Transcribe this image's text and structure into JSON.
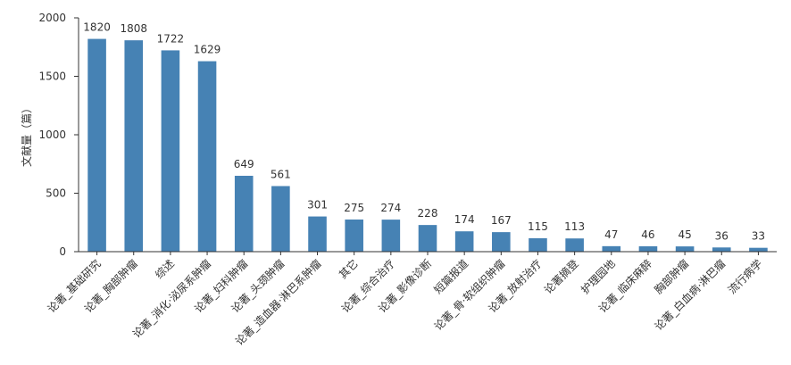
{
  "chart_data": {
    "type": "bar",
    "categories": [
      "论著_基础研究",
      "论著_胸部肿瘤",
      "综述",
      "论著_消化·泌尿系肿瘤",
      "论著_妇科肿瘤",
      "论著_头颈肿瘤",
      "论著_造血器·淋巴系肿瘤",
      "其它",
      "论著_综合治疗",
      "论著_影像诊断",
      "短篇报道",
      "论著_骨·软组织肿瘤",
      "论著_放射治疗",
      "论著摘登",
      "护理园地",
      "论著_临床麻醉",
      "胸部肿瘤",
      "论著_白血病·淋巴瘤",
      "流行病学"
    ],
    "values": [
      1820,
      1808,
      1722,
      1629,
      649,
      561,
      301,
      275,
      274,
      228,
      174,
      167,
      115,
      113,
      47,
      46,
      45,
      36,
      33
    ],
    "title": "",
    "xlabel": "",
    "ylabel": "文献量（篇）",
    "ylim": [
      0,
      2000
    ],
    "yticks": [
      0,
      500,
      1000,
      1500,
      2000
    ],
    "bar_color": "#4682b4",
    "axis_color": "#333333",
    "grid": false
  }
}
